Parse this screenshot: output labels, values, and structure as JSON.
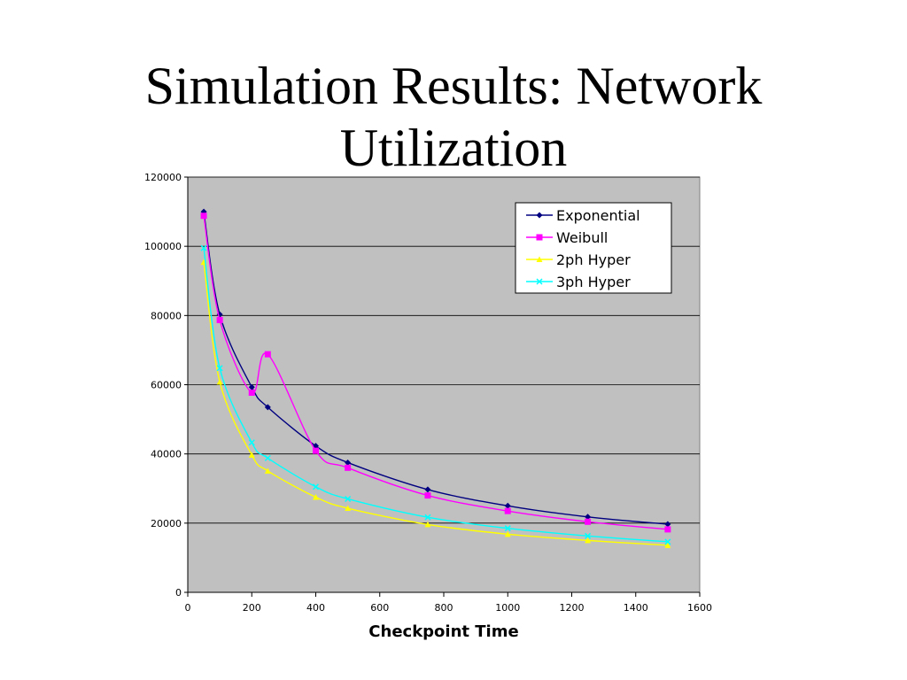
{
  "slide": {
    "title_line1": "Simulation Results: Network",
    "title_line2": "Utilization"
  },
  "chart_data": {
    "type": "line",
    "title": "",
    "xlabel": "Checkpoint Time",
    "ylabel": "",
    "xlim": [
      0,
      1600
    ],
    "ylim": [
      0,
      120000
    ],
    "x_ticks": [
      0,
      200,
      400,
      600,
      800,
      1000,
      1200,
      1400,
      1600
    ],
    "y_ticks": [
      0,
      20000,
      40000,
      60000,
      80000,
      100000,
      120000
    ],
    "grid": "horizontal",
    "plot_background": "#c0c0c0",
    "legend_position": "top-right",
    "series": [
      {
        "name": "Exponential",
        "color": "#000080",
        "marker": "diamond",
        "x": [
          50,
          100,
          200,
          250,
          400,
          500,
          750,
          1000,
          1250,
          1500
        ],
        "values": [
          110000,
          80300,
          59300,
          53500,
          42300,
          37500,
          29700,
          25000,
          21800,
          19700
        ]
      },
      {
        "name": "Weibull",
        "color": "#ff00ff",
        "marker": "square",
        "x": [
          50,
          100,
          200,
          250,
          400,
          500,
          750,
          1000,
          1250,
          1500
        ],
        "values": [
          108800,
          78700,
          57700,
          68800,
          40900,
          36000,
          28000,
          23500,
          20400,
          18200
        ]
      },
      {
        "name": "2ph Hyper",
        "color": "#ffff00",
        "marker": "triangle",
        "x": [
          50,
          100,
          200,
          250,
          400,
          500,
          750,
          1000,
          1250,
          1500
        ],
        "values": [
          95400,
          60800,
          39700,
          35100,
          27500,
          24300,
          19600,
          16800,
          15000,
          13600
        ]
      },
      {
        "name": "3ph Hyper",
        "color": "#00ffff",
        "marker": "x",
        "x": [
          50,
          100,
          200,
          250,
          400,
          500,
          750,
          1000,
          1250,
          1500
        ],
        "values": [
          99500,
          64800,
          43300,
          38800,
          30500,
          27000,
          21700,
          18500,
          16300,
          14600
        ]
      }
    ]
  }
}
